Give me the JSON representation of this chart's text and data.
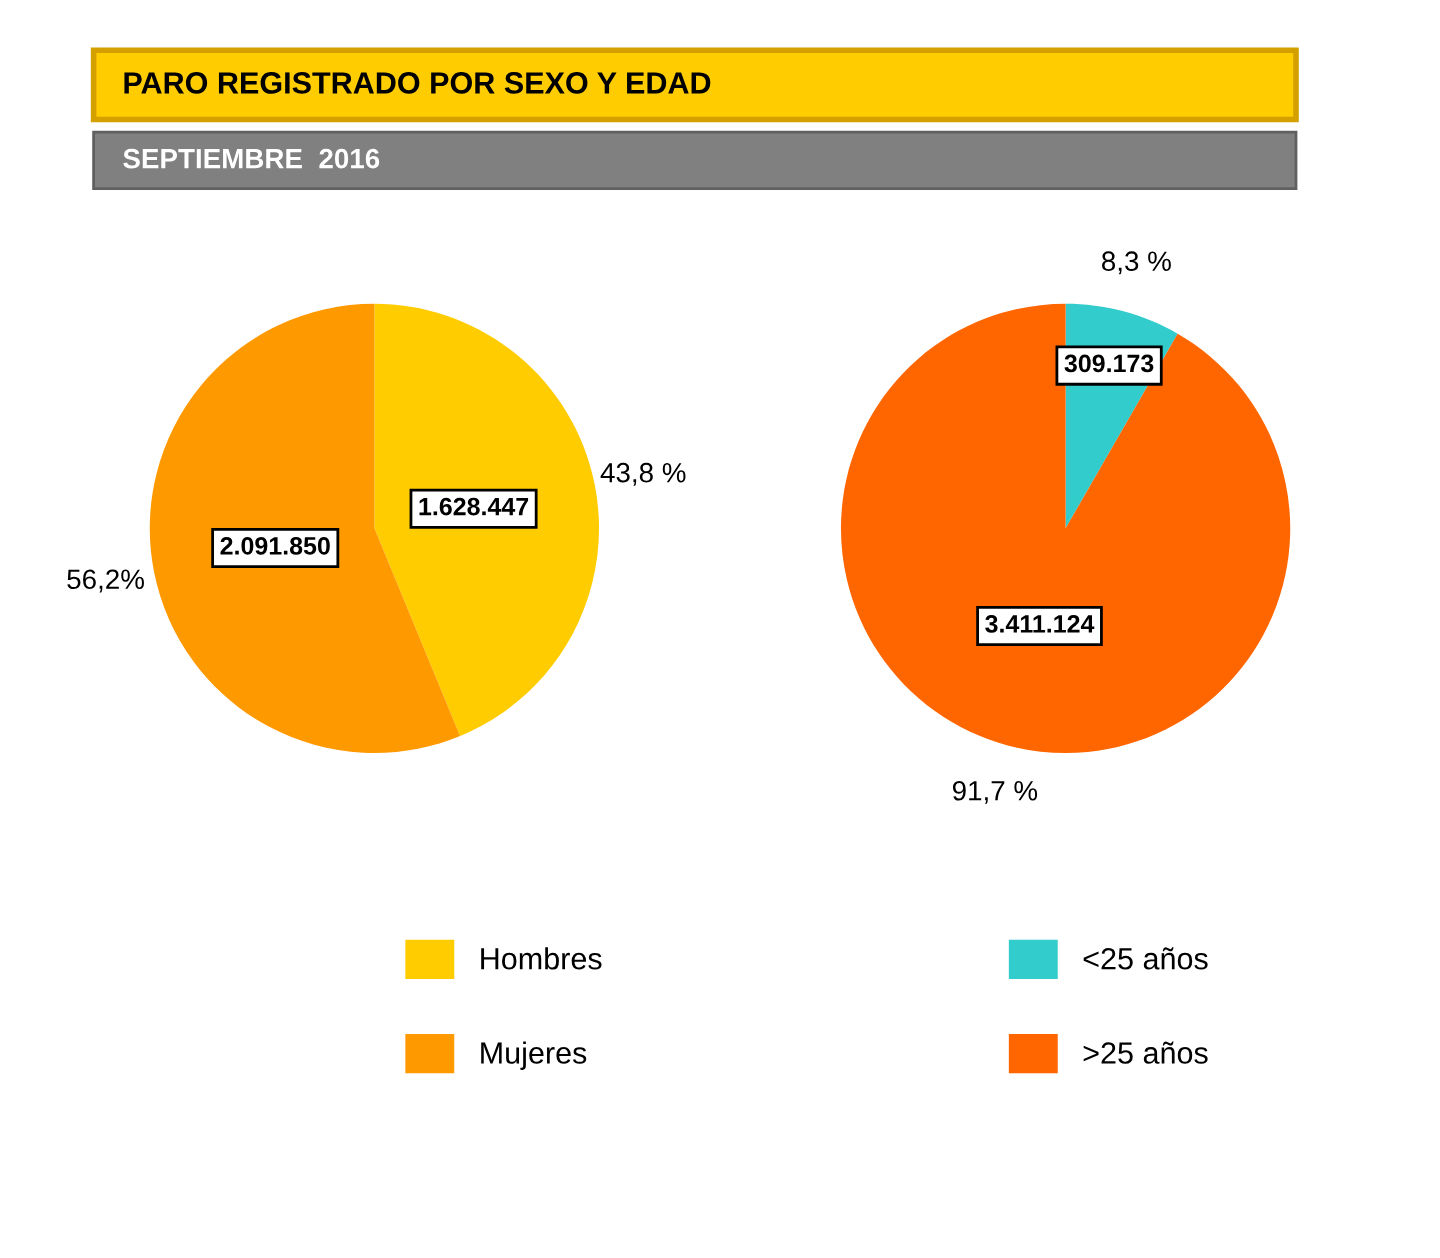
{
  "chart_data": [
    {
      "type": "pie",
      "title": "PARO REGISTRADO POR SEXO Y EDAD",
      "subtitle": "SEPTIEMBRE  2016",
      "categories": [
        "Hombres",
        "Mujeres"
      ],
      "values": [
        1628447,
        2091850
      ],
      "colors": [
        "#ffcc00",
        "#ff9900"
      ],
      "value_labels": [
        "1.628.447",
        "2.091.850"
      ],
      "annotations": [
        "43,8 %",
        "56,2%"
      ],
      "legend": "bottom"
    },
    {
      "type": "pie",
      "categories": [
        "<25 años",
        ">25 años"
      ],
      "values": [
        309173,
        3411124
      ],
      "colors": [
        "#33cccc",
        "#ff6600"
      ],
      "value_labels": [
        "309.173",
        "3.411.124"
      ],
      "annotations": [
        "8,3 %",
        "91,7 %"
      ],
      "legend": "bottom"
    }
  ]
}
